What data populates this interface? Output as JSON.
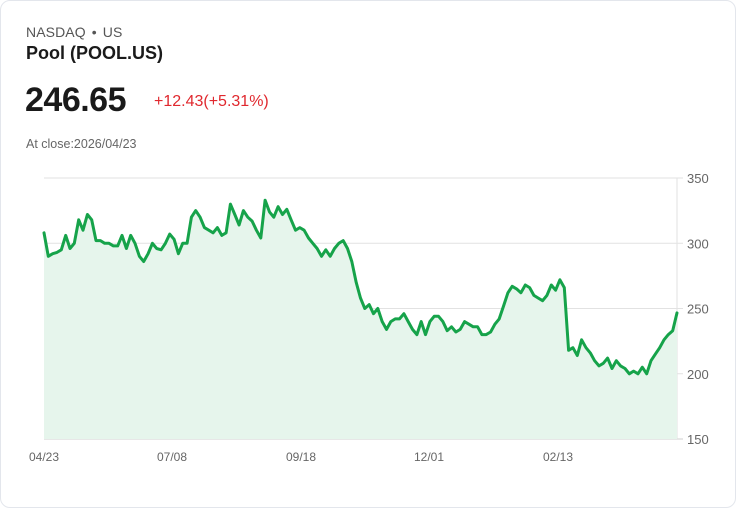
{
  "header": {
    "exchange": "NASDAQ",
    "separator": "•",
    "region": "US",
    "title": "Pool (POOL.US)",
    "price": "246.65",
    "change": "+12.43(+5.31%)",
    "at_close": "At close:2026/04/23"
  },
  "colors": {
    "line": "#16a34a",
    "fill": "#e6f5ec",
    "change_negative_or_positive_text": "#e0282e",
    "grid": "#e2e2e2"
  },
  "chart_data": {
    "type": "area",
    "title": "Pool (POOL.US)",
    "xlabel": "",
    "ylabel": "",
    "ylim": [
      150,
      350
    ],
    "y_ticks": [
      "350",
      "300",
      "250",
      "200",
      "150"
    ],
    "x_ticks": [
      "04/23",
      "07/08",
      "09/18",
      "12/01",
      "02/13"
    ],
    "grid": true,
    "y_axis_position": "right",
    "legend": null,
    "series": [
      {
        "name": "POOL.US",
        "values": [
          308,
          290,
          292,
          293,
          295,
          306,
          296,
          300,
          318,
          310,
          322,
          318,
          302,
          302,
          300,
          300,
          298,
          298,
          306,
          296,
          306,
          300,
          290,
          286,
          292,
          300,
          296,
          295,
          300,
          307,
          303,
          292,
          300,
          300,
          320,
          325,
          320,
          312,
          310,
          308,
          312,
          306,
          308,
          330,
          322,
          314,
          325,
          320,
          317,
          310,
          304,
          333,
          324,
          320,
          328,
          322,
          326,
          318,
          310,
          312,
          310,
          304,
          300,
          296,
          290,
          295,
          290,
          296,
          300,
          302,
          296,
          286,
          270,
          258,
          250,
          253,
          246,
          250,
          240,
          234,
          240,
          242,
          242,
          246,
          240,
          234,
          230,
          240,
          230,
          240,
          244,
          244,
          240,
          233,
          236,
          232,
          234,
          240,
          238,
          236,
          236,
          230,
          230,
          232,
          238,
          242,
          252,
          262,
          267,
          265,
          262,
          268,
          266,
          260,
          258,
          256,
          260,
          268,
          264,
          272,
          266,
          218,
          220,
          214,
          226,
          220,
          216,
          210,
          206,
          208,
          212,
          204,
          210,
          206,
          204,
          200,
          202,
          200,
          205,
          200,
          210,
          215,
          220,
          226,
          230,
          233,
          246.65
        ]
      }
    ]
  }
}
